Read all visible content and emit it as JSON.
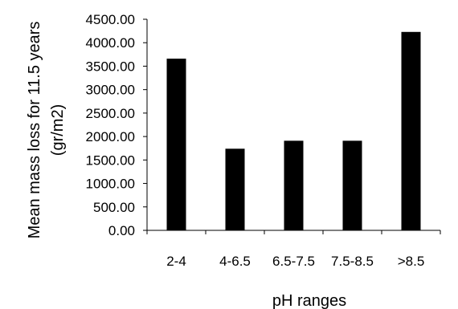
{
  "chart_data": {
    "type": "bar",
    "categories": [
      "2-4",
      "4-6.5",
      "6.5-7.5",
      "7.5-8.5",
      ">8.5"
    ],
    "values": [
      3660,
      1740,
      1910,
      1910,
      4230
    ],
    "y_ticks": [
      "0.00",
      "500.00",
      "1000.00",
      "1500.00",
      "2000.00",
      "2500.00",
      "3000.00",
      "3500.00",
      "4000.00",
      "4500.00"
    ],
    "ylim": [
      0,
      4500
    ],
    "xlabel": "pH ranges",
    "ylabel_lines": [
      "Mean mass loss for 11.5 years",
      "(gr/m2)"
    ],
    "grid": false,
    "bar_color": "#000000"
  }
}
